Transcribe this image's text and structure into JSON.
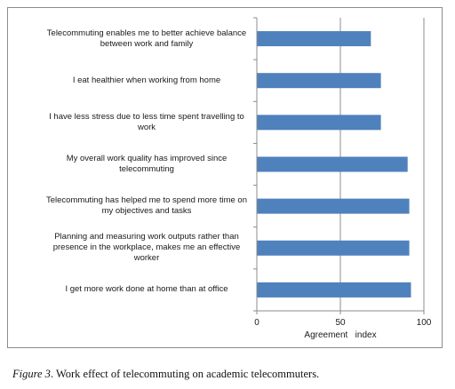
{
  "chart_data": {
    "type": "bar",
    "orientation": "horizontal",
    "categories": [
      "Telecommuting enables me to better achieve balance between work and family",
      "I eat healthier when working from home",
      "I have less stress due to less time spent travelling to work",
      "My overall work quality has improved since telecommuting",
      "Telecommuting has helped me to spend more time on my objectives and tasks",
      "Planning and measuring work outputs rather than presence in the workplace, makes me an effective worker",
      "I get more work done at home than at office"
    ],
    "values": [
      68,
      74,
      74,
      90,
      91,
      91,
      92
    ],
    "xlabel": "Agreement   index",
    "xlim": [
      0,
      100
    ],
    "xticks": [
      "0",
      "50",
      "100"
    ],
    "grid": true,
    "bar_color": "#4f81bd"
  },
  "chart_labels": [
    [
      "Telecommuting enables me to better achieve balance",
      "between work and family"
    ],
    [
      "I eat healthier when working from home"
    ],
    [
      "I have less stress due to less time spent travelling to",
      "work"
    ],
    [
      "My overall work quality has improved since",
      "telecommuting"
    ],
    [
      "Telecommuting has helped me to spend more time on",
      "my objectives and tasks"
    ],
    [
      "Planning and measuring work outputs rather than",
      "presence in the workplace, makes me an effective",
      "worker"
    ],
    [
      "I get more work done at home than at office"
    ]
  ],
  "caption": {
    "figure_label": "Figure 3",
    "text": ". Work effect of telecommuting on academic telecommuters."
  }
}
